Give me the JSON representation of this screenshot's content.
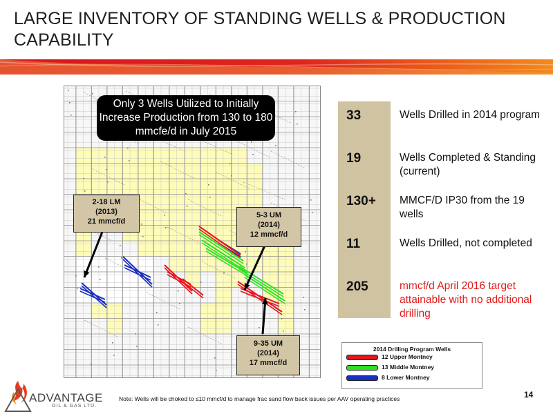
{
  "title": "LARGE INVENTORY OF STANDING WELLS & PRODUCTION CAPABILITY",
  "colors": {
    "banner_red": "#d8141c",
    "banner_orange": "#f28a1c",
    "tan": "#d0c3a2",
    "map_yellow": "#fefcb8",
    "upper_montney": "#e8141c",
    "middle_montney": "#2ce21e",
    "lower_montney": "#1a2ec0"
  },
  "map": {
    "headline": "Only 3 Wells Utilized to Initially Increase Production from 130 to 180 mmcfe/d in July 2015",
    "callouts": [
      {
        "name": "2-18 LM",
        "year": "(2013)",
        "rate": "21 mmcf/d"
      },
      {
        "name": "5-3 UM",
        "year": "(2014)",
        "rate": "12 mmcf/d"
      },
      {
        "name": "9-35 UM",
        "year": "(2014)",
        "rate": "17 mmcf/d"
      }
    ]
  },
  "stats": [
    {
      "value": "33",
      "description": "Wells Drilled in 2014 program"
    },
    {
      "value": "19",
      "description": "Wells Completed & Standing (current)"
    },
    {
      "value": "130+",
      "description": "MMCF/D IP30 from the 19 wells"
    },
    {
      "value": "11",
      "description": "Wells Drilled, not completed"
    },
    {
      "value": "205",
      "description": "mmcf/d April 2016 target attainable with no additional drilling"
    }
  ],
  "legend": {
    "title": "2014 Drilling Program Wells",
    "items": [
      {
        "label": "12 Upper Montney",
        "icon": "red-well-line"
      },
      {
        "label": "13 Middle Montney",
        "icon": "green-well-line"
      },
      {
        "label": "8 Lower Montney",
        "icon": "blue-well-line"
      }
    ]
  },
  "footer": {
    "note": "Note:  Wells will be choked to ≤10 mmcf/d to manage frac sand flow back issues per AAV operating practices",
    "page_number": "14",
    "logo_name": "ADVANTAGE",
    "logo_sub": "OIL & GAS LTD."
  }
}
